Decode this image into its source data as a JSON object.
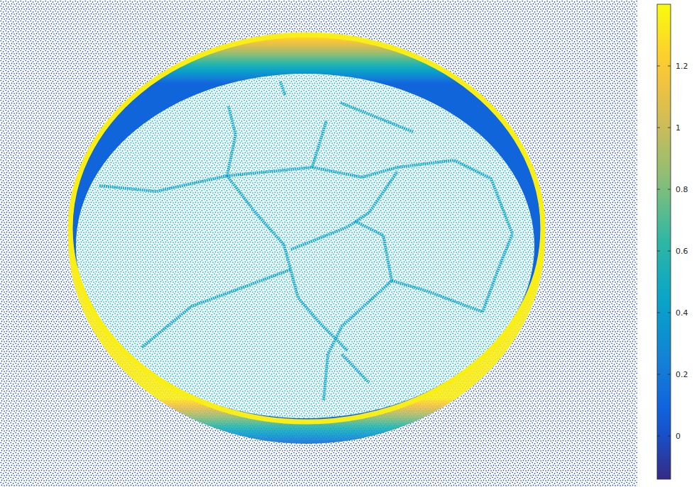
{
  "chart_data": {
    "type": "point_cloud",
    "colorbar_range": [
      -0.14,
      1.4
    ],
    "colorbar_ticks": [
      0,
      0.2,
      0.4,
      0.6,
      0.8,
      1,
      1.2
    ],
    "ground_value": -0.02,
    "floor_value": 0.52,
    "crack_value": 0.42,
    "rim_top_value": 1.35,
    "rim_bottom_value": 0.1
  }
}
